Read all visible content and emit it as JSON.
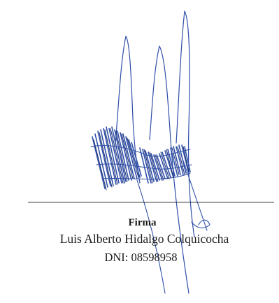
{
  "signature_block": {
    "label": "Firma",
    "name": "Luis Alberto Hidalgo Colquicocha",
    "dni": "DNI: 08598958"
  },
  "colors": {
    "ink": "#2f4fa8",
    "ink_dark": "#1b2f70",
    "text": "#1c1c1c",
    "line": "#2b2b2b"
  }
}
